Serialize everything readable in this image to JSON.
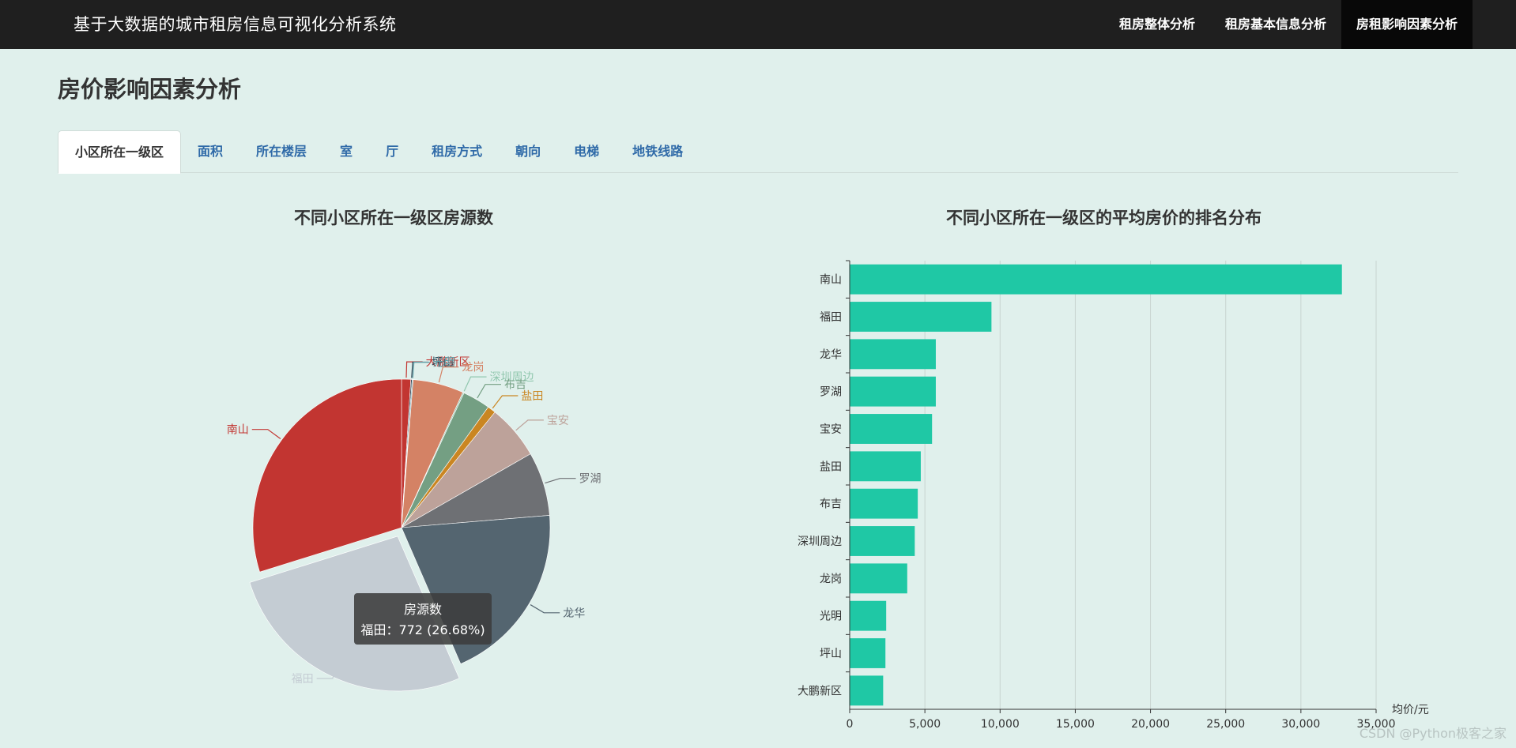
{
  "app": {
    "title": "基于大数据的城市租房信息可视化分析系统"
  },
  "nav": {
    "items": [
      {
        "label": "租房整体分析",
        "active": false
      },
      {
        "label": "租房基本信息分析",
        "active": false
      },
      {
        "label": "房租影响因素分析",
        "active": true
      }
    ]
  },
  "page": {
    "title": "房价影响因素分析"
  },
  "tabs": [
    {
      "label": "小区所在一级区",
      "active": true
    },
    {
      "label": "面积",
      "active": false
    },
    {
      "label": "所在楼层",
      "active": false
    },
    {
      "label": "室",
      "active": false
    },
    {
      "label": "厅",
      "active": false
    },
    {
      "label": "租房方式",
      "active": false
    },
    {
      "label": "朝向",
      "active": false
    },
    {
      "label": "电梯",
      "active": false
    },
    {
      "label": "地铁线路",
      "active": false
    }
  ],
  "tooltip": {
    "series": "房源数",
    "text": "福田：772 (26.68%)"
  },
  "watermark": "CSDN @Python极客之家",
  "chart_data": [
    {
      "type": "pie",
      "title": "不同小区所在一级区房源数",
      "series_name": "房源数",
      "slices": [
        {
          "name": "大鹏新区",
          "value": 29,
          "color": "#c23531"
        },
        {
          "name": "坪山",
          "value": 4,
          "color": "#2f4554"
        },
        {
          "name": "光明",
          "value": 3,
          "color": "#61a0a8"
        },
        {
          "name": "龙岗",
          "value": 160,
          "color": "#d48265"
        },
        {
          "name": "深圳周边",
          "value": 4,
          "color": "#91c7ae"
        },
        {
          "name": "布吉",
          "value": 87,
          "color": "#749f83"
        },
        {
          "name": "盐田",
          "value": 26,
          "color": "#ca8622"
        },
        {
          "name": "宝安",
          "value": 171,
          "color": "#bda29a"
        },
        {
          "name": "罗湖",
          "value": 201,
          "color": "#6e7074"
        },
        {
          "name": "龙华",
          "value": 573,
          "color": "#546570"
        },
        {
          "name": "福田",
          "value": 772,
          "color": "#c4ccd3"
        },
        {
          "name": "南山",
          "value": 863,
          "color": "#c23531"
        }
      ],
      "highlighted": "福田"
    },
    {
      "type": "bar",
      "orientation": "horizontal",
      "title": "不同小区所在一级区的平均房价的排名分布",
      "categories": [
        "南山",
        "福田",
        "龙华",
        "罗湖",
        "宝安",
        "盐田",
        "布吉",
        "深圳周边",
        "龙岗",
        "光明",
        "坪山",
        "大鹏新区"
      ],
      "values": [
        32700,
        9400,
        5700,
        5700,
        5450,
        4700,
        4500,
        4300,
        3800,
        2400,
        2350,
        2200
      ],
      "xlabel": "均价/元",
      "xlim": [
        0,
        35000
      ],
      "xticks": [
        0,
        5000,
        10000,
        15000,
        20000,
        25000,
        30000,
        35000
      ],
      "xtick_labels": [
        "0",
        "5,000",
        "10,000",
        "15,000",
        "20,000",
        "25,000",
        "30,000",
        "35,000"
      ],
      "color": "#1fc8a5",
      "grid": true
    }
  ]
}
